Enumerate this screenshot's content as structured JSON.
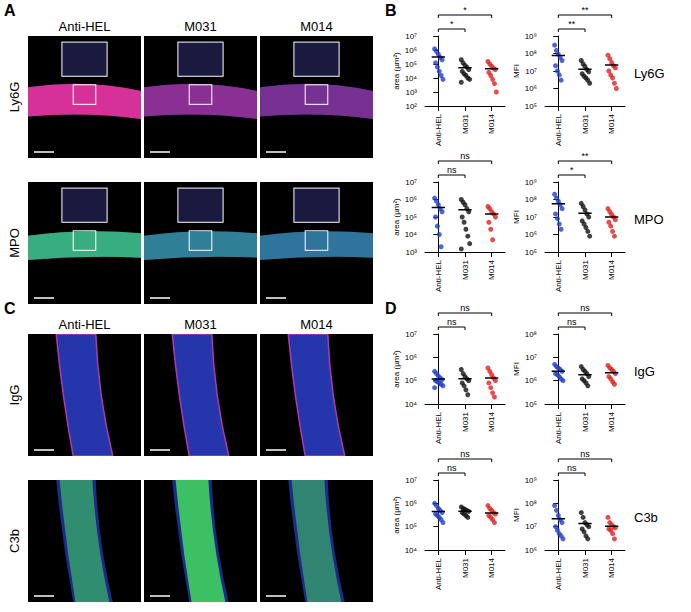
{
  "image_panels": [
    {
      "letter": "A",
      "columns": [
        "Anti-HEL",
        "M031",
        "M014"
      ],
      "rows": [
        "Ly6G",
        "MPO"
      ]
    },
    {
      "letter": "C",
      "columns": [
        "Anti-HEL",
        "M031",
        "M014"
      ],
      "rows": [
        "IgG",
        "C3b"
      ]
    }
  ],
  "plot_panels": [
    {
      "letter": "B",
      "rows": [
        "Ly6G",
        "MPO"
      ]
    },
    {
      "letter": "D",
      "rows": [
        "IgG",
        "C3b"
      ]
    }
  ],
  "chart_data": [
    {
      "type": "scatter",
      "ylabel": "area (µm²)",
      "categories": [
        "Anti-HEL",
        "M031",
        "M014"
      ],
      "colors": [
        "#1f3fd0",
        "#111111",
        "#e02020"
      ],
      "values": [
        [
          1200000,
          800000,
          500000,
          300000,
          200000,
          120000,
          60000,
          30000,
          15000,
          8000
        ],
        [
          200000,
          120000,
          80000,
          60000,
          40000,
          30000,
          20000,
          15000,
          10000,
          8000,
          5000
        ],
        [
          150000,
          100000,
          70000,
          50000,
          40000,
          25000,
          15000,
          8000,
          4000,
          1000
        ]
      ],
      "means": [
        320000,
        54000,
        46000
      ],
      "log": "y",
      "ylim": [
        100,
        10000000
      ],
      "yticks": [
        {
          "value": 100,
          "label": "10²"
        },
        {
          "value": 1000,
          "label": "10³"
        },
        {
          "value": 10000,
          "label": "10⁴"
        },
        {
          "value": 100000,
          "label": "10⁵"
        },
        {
          "value": 1000000,
          "label": "10⁶"
        },
        {
          "value": 10000000,
          "label": "10⁷"
        }
      ],
      "comparisons": [
        {
          "from": "Anti-HEL",
          "to": "M031",
          "label": "*"
        },
        {
          "from": "Anti-HEL",
          "to": "M014",
          "label": "*"
        }
      ]
    },
    {
      "type": "scatter",
      "ylabel": "MFI",
      "categories": [
        "Anti-HEL",
        "M031",
        "M014"
      ],
      "colors": [
        "#1f3fd0",
        "#111111",
        "#e02020"
      ],
      "values": [
        [
          300000000,
          150000000,
          90000000,
          60000000,
          40000000,
          20000000,
          10000000,
          6000000,
          3000000
        ],
        [
          40000000,
          25000000,
          18000000,
          12000000,
          9000000,
          7000000,
          5000000,
          4000000,
          3000000,
          2000000
        ],
        [
          80000000,
          50000000,
          30000000,
          20000000,
          15000000,
          10000000,
          6000000,
          4000000,
          2000000,
          1000000
        ]
      ],
      "means": [
        76000000,
        12500000,
        22000000
      ],
      "log": "y",
      "ylim": [
        100000,
        1000000000
      ],
      "yticks": [
        {
          "value": 100000,
          "label": "10⁵"
        },
        {
          "value": 1000000,
          "label": "10⁶"
        },
        {
          "value": 10000000,
          "label": "10⁷"
        },
        {
          "value": 100000000,
          "label": "10⁸"
        },
        {
          "value": 1000000000,
          "label": "10⁹"
        }
      ],
      "comparisons": [
        {
          "from": "Anti-HEL",
          "to": "M031",
          "label": "**"
        },
        {
          "from": "Anti-HEL",
          "to": "M014",
          "label": "**"
        }
      ]
    },
    {
      "type": "scatter",
      "ylabel": "area (µm²)",
      "categories": [
        "Anti-HEL",
        "M031",
        "M014"
      ],
      "colors": [
        "#1f3fd0",
        "#111111",
        "#e02020"
      ],
      "values": [
        [
          1200000,
          800000,
          500000,
          300000,
          200000,
          100000,
          30000,
          10000,
          2000
        ],
        [
          1000000,
          700000,
          500000,
          300000,
          200000,
          100000,
          50000,
          20000,
          8000,
          3000,
          1500
        ],
        [
          400000,
          300000,
          200000,
          150000,
          100000,
          50000,
          20000,
          5000
        ]
      ],
      "means": [
        350000,
        260000,
        150000
      ],
      "log": "y",
      "ylim": [
        1000,
        10000000
      ],
      "yticks": [
        {
          "value": 1000,
          "label": "10³"
        },
        {
          "value": 10000,
          "label": "10⁴"
        },
        {
          "value": 100000,
          "label": "10⁵"
        },
        {
          "value": 1000000,
          "label": "10⁶"
        },
        {
          "value": 10000000,
          "label": "10⁷"
        }
      ],
      "comparisons": [
        {
          "from": "Anti-HEL",
          "to": "M031",
          "label": "ns"
        },
        {
          "from": "Anti-HEL",
          "to": "M014",
          "label": "ns"
        }
      ]
    },
    {
      "type": "scatter",
      "ylabel": "MFI",
      "categories": [
        "Anti-HEL",
        "M031",
        "M014"
      ],
      "colors": [
        "#1f3fd0",
        "#111111",
        "#e02020"
      ],
      "values": [
        [
          200000000,
          120000000,
          80000000,
          50000000,
          30000000,
          15000000,
          8000000,
          4000000,
          2000000
        ],
        [
          60000000,
          40000000,
          25000000,
          15000000,
          10000000,
          6000000,
          4000000,
          2500000,
          1500000,
          800000
        ],
        [
          30000000,
          20000000,
          14000000,
          10000000,
          7000000,
          5000000,
          3000000,
          1500000,
          800000
        ]
      ],
      "means": [
        57000000,
        16500000,
        10000000
      ],
      "log": "y",
      "ylim": [
        100000,
        1000000000
      ],
      "yticks": [
        {
          "value": 100000,
          "label": "10⁵"
        },
        {
          "value": 1000000,
          "label": "10⁶"
        },
        {
          "value": 10000000,
          "label": "10⁷"
        },
        {
          "value": 100000000,
          "label": "10⁸"
        },
        {
          "value": 1000000000,
          "label": "10⁹"
        }
      ],
      "comparisons": [
        {
          "from": "Anti-HEL",
          "to": "M031",
          "label": "*"
        },
        {
          "from": "Anti-HEL",
          "to": "M014",
          "label": "**"
        }
      ]
    },
    {
      "type": "scatter",
      "ylabel": "area (µm²)",
      "categories": [
        "Anti-HEL",
        "M031",
        "M014"
      ],
      "colors": [
        "#1f3fd0",
        "#111111",
        "#e02020"
      ],
      "values": [
        [
          250000,
          200000,
          160000,
          130000,
          110000,
          100000,
          90000,
          80000,
          70000,
          60000,
          50000
        ],
        [
          300000,
          200000,
          150000,
          120000,
          100000,
          80000,
          60000,
          40000,
          25000
        ],
        [
          350000,
          250000,
          180000,
          130000,
          100000,
          80000,
          50000,
          30000,
          20000
        ]
      ],
      "means": [
        118000,
        120000,
        130000
      ],
      "log": "y",
      "ylim": [
        10000,
        10000000
      ],
      "yticks": [
        {
          "value": 10000,
          "label": "10⁴"
        },
        {
          "value": 100000,
          "label": "10⁵"
        },
        {
          "value": 1000000,
          "label": "10⁶"
        },
        {
          "value": 10000000,
          "label": "10⁷"
        }
      ],
      "comparisons": [
        {
          "from": "Anti-HEL",
          "to": "M031",
          "label": "ns"
        },
        {
          "from": "Anti-HEL",
          "to": "M014",
          "label": "ns"
        }
      ]
    },
    {
      "type": "scatter",
      "ylabel": "MFI",
      "categories": [
        "Anti-HEL",
        "M031",
        "M014"
      ],
      "colors": [
        "#1f3fd0",
        "#111111",
        "#e02020"
      ],
      "values": [
        [
          5000000,
          4000000,
          3500000,
          3000000,
          2500000,
          2000000,
          1800000,
          1500000,
          1200000,
          1000000
        ],
        [
          4000000,
          3000000,
          2500000,
          2000000,
          1500000,
          1200000,
          1000000,
          800000,
          600000
        ],
        [
          4500000,
          3500000,
          3000000,
          2500000,
          2000000,
          1500000,
          1200000,
          900000,
          700000
        ]
      ],
      "means": [
        2550000,
        1800000,
        2200000
      ],
      "log": "y",
      "ylim": [
        100000,
        100000000
      ],
      "yticks": [
        {
          "value": 100000,
          "label": "10⁵"
        },
        {
          "value": 1000000,
          "label": "10⁶"
        },
        {
          "value": 10000000,
          "label": "10⁷"
        },
        {
          "value": 100000000,
          "label": "10⁸"
        }
      ],
      "comparisons": [
        {
          "from": "Anti-HEL",
          "to": "M031",
          "label": "ns"
        },
        {
          "from": "Anti-HEL",
          "to": "M014",
          "label": "ns"
        }
      ]
    },
    {
      "type": "scatter",
      "ylabel": "area (µm²)",
      "categories": [
        "Anti-HEL",
        "M031",
        "M014"
      ],
      "colors": [
        "#1f3fd0",
        "#111111",
        "#e02020"
      ],
      "values": [
        [
          1000000,
          800000,
          600000,
          500000,
          400000,
          350000,
          300000,
          250000,
          200000,
          150000
        ],
        [
          700000,
          600000,
          550000,
          500000,
          450000,
          400000,
          350000,
          300000,
          250000
        ],
        [
          800000,
          600000,
          500000,
          400000,
          350000,
          300000,
          250000,
          200000,
          150000
        ]
      ],
      "means": [
        450000,
        460000,
        390000
      ],
      "log": "y",
      "ylim": [
        10000,
        10000000
      ],
      "yticks": [
        {
          "value": 10000,
          "label": "10⁴"
        },
        {
          "value": 100000,
          "label": "10⁵"
        },
        {
          "value": 1000000,
          "label": "10⁶"
        },
        {
          "value": 10000000,
          "label": "10⁷"
        }
      ],
      "comparisons": [
        {
          "from": "Anti-HEL",
          "to": "M031",
          "label": "ns"
        },
        {
          "from": "Anti-HEL",
          "to": "M014",
          "label": "ns"
        }
      ]
    },
    {
      "type": "scatter",
      "ylabel": "MFI",
      "categories": [
        "Anti-HEL",
        "M031",
        "M014"
      ],
      "colors": [
        "#1f3fd0",
        "#111111",
        "#e02020"
      ],
      "values": [
        [
          80000000,
          50000000,
          30000000,
          20000000,
          15000000,
          10000000,
          7000000,
          5000000,
          4000000,
          3000000
        ],
        [
          40000000,
          25000000,
          15000000,
          12000000,
          10000000,
          8000000,
          6000000,
          4000000,
          3000000
        ],
        [
          25000000,
          15000000,
          12000000,
          10000000,
          9000000,
          8000000,
          7000000,
          5000000,
          3000000
        ]
      ],
      "means": [
        22000000,
        13700000,
        10400000
      ],
      "log": "y",
      "ylim": [
        1000000,
        1000000000
      ],
      "yticks": [
        {
          "value": 1000000,
          "label": "10⁶"
        },
        {
          "value": 10000000,
          "label": "10⁷"
        },
        {
          "value": 100000000,
          "label": "10⁸"
        },
        {
          "value": 1000000000,
          "label": "10⁹"
        }
      ],
      "comparisons": [
        {
          "from": "Anti-HEL",
          "to": "M031",
          "label": "ns"
        },
        {
          "from": "Anti-HEL",
          "to": "M014",
          "label": "ns"
        }
      ]
    }
  ]
}
